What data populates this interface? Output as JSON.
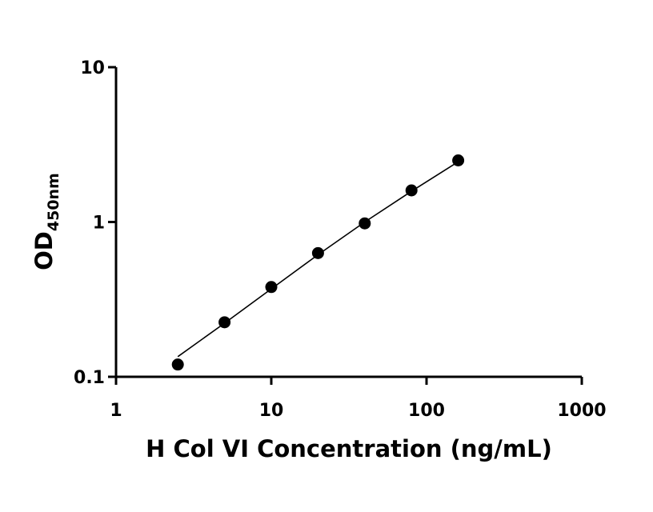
{
  "chart_data": {
    "type": "scatter",
    "xscale": "log",
    "yscale": "log",
    "xlim": [
      1,
      1000
    ],
    "ylim": [
      0.1,
      10
    ],
    "xticks": [
      {
        "value": 1,
        "label": "1"
      },
      {
        "value": 10,
        "label": "10"
      },
      {
        "value": 100,
        "label": "100"
      },
      {
        "value": 1000,
        "label": "1000"
      }
    ],
    "yticks": [
      {
        "value": 0.1,
        "label": "0.1"
      },
      {
        "value": 1,
        "label": "1"
      },
      {
        "value": 10,
        "label": "10"
      }
    ],
    "xlabel": "H Col VI Concentration (ng/mL)",
    "ylabel": {
      "main": "OD",
      "sub": "450nm"
    },
    "grid": false,
    "legend": "none",
    "marker_color": "#000000",
    "series": [
      {
        "points": [
          {
            "x": 2.5,
            "y": 0.12
          },
          {
            "x": 5,
            "y": 0.225
          },
          {
            "x": 10,
            "y": 0.38
          },
          {
            "x": 20,
            "y": 0.63
          },
          {
            "x": 40,
            "y": 0.98
          },
          {
            "x": 80,
            "y": 1.6
          },
          {
            "x": 160,
            "y": 2.5
          }
        ],
        "fit": {
          "x": [
            2.5,
            5,
            10,
            20,
            40,
            80,
            160
          ],
          "y": [
            0.135,
            0.222,
            0.37,
            0.615,
            1.0,
            1.58,
            2.45
          ]
        }
      }
    ]
  }
}
